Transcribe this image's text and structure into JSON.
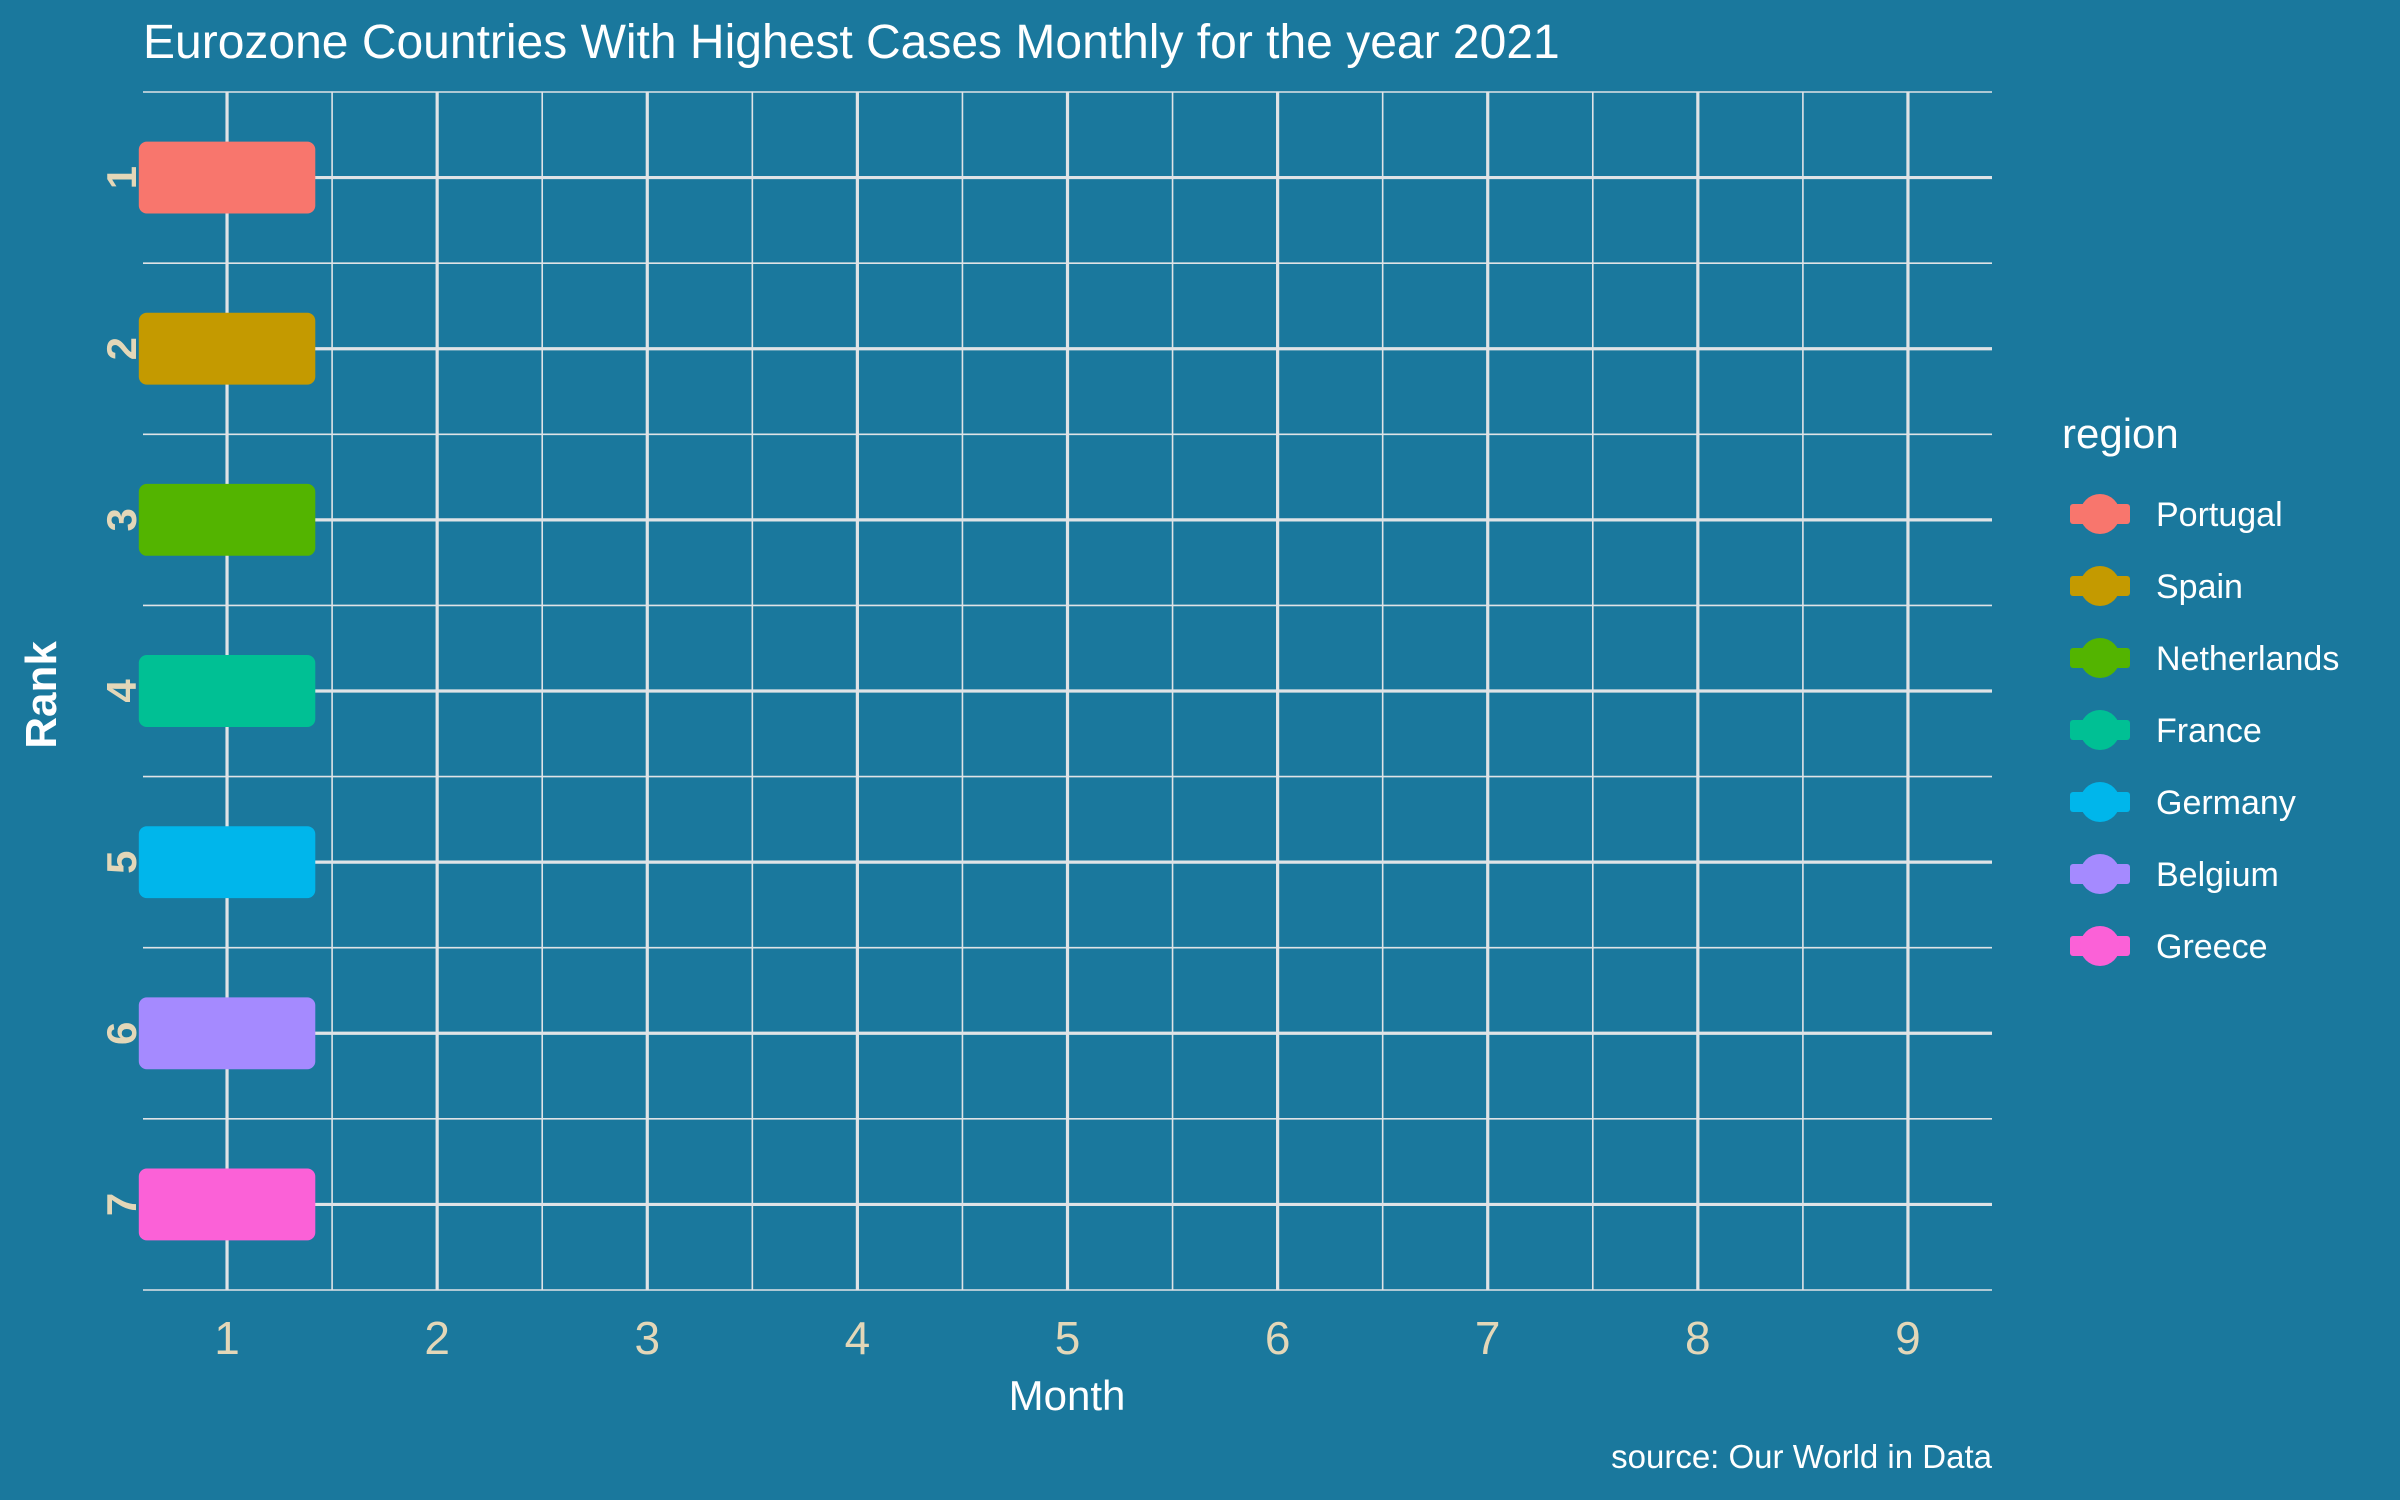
{
  "chart_data": {
    "type": "bar",
    "title": "Eurozone Countries With Highest Cases Monthly for the year 2021",
    "xlabel": "Month",
    "ylabel": "Rank",
    "caption": "source: Our World in Data",
    "x_ticks": [
      "1",
      "2",
      "3",
      "4",
      "5",
      "6",
      "7",
      "8",
      "9"
    ],
    "y_ticks": [
      "1",
      "2",
      "3",
      "4",
      "5",
      "6",
      "7"
    ],
    "xlim": [
      0.6,
      9.4
    ],
    "ylim": [
      0.5,
      7.5
    ],
    "y_reversed": true,
    "grid": true,
    "legend": {
      "title": "region",
      "position": "right"
    },
    "series": [
      {
        "name": "Portugal",
        "month": 1,
        "rank": 1,
        "color": "#F8766D"
      },
      {
        "name": "Spain",
        "month": 1,
        "rank": 2,
        "color": "#C49A00"
      },
      {
        "name": "Netherlands",
        "month": 1,
        "rank": 3,
        "color": "#53B400"
      },
      {
        "name": "France",
        "month": 1,
        "rank": 4,
        "color": "#00C094"
      },
      {
        "name": "Germany",
        "month": 1,
        "rank": 5,
        "color": "#00B6EB"
      },
      {
        "name": "Belgium",
        "month": 1,
        "rank": 6,
        "color": "#A58AFF"
      },
      {
        "name": "Greece",
        "month": 1,
        "rank": 7,
        "color": "#FB61D7"
      }
    ],
    "colors": {
      "background": "#1a789d",
      "grid": "#dfe3e6",
      "title_text": "#ffffff",
      "tick_text": "#e3d7b8",
      "legend_text": "#ffffff"
    }
  }
}
